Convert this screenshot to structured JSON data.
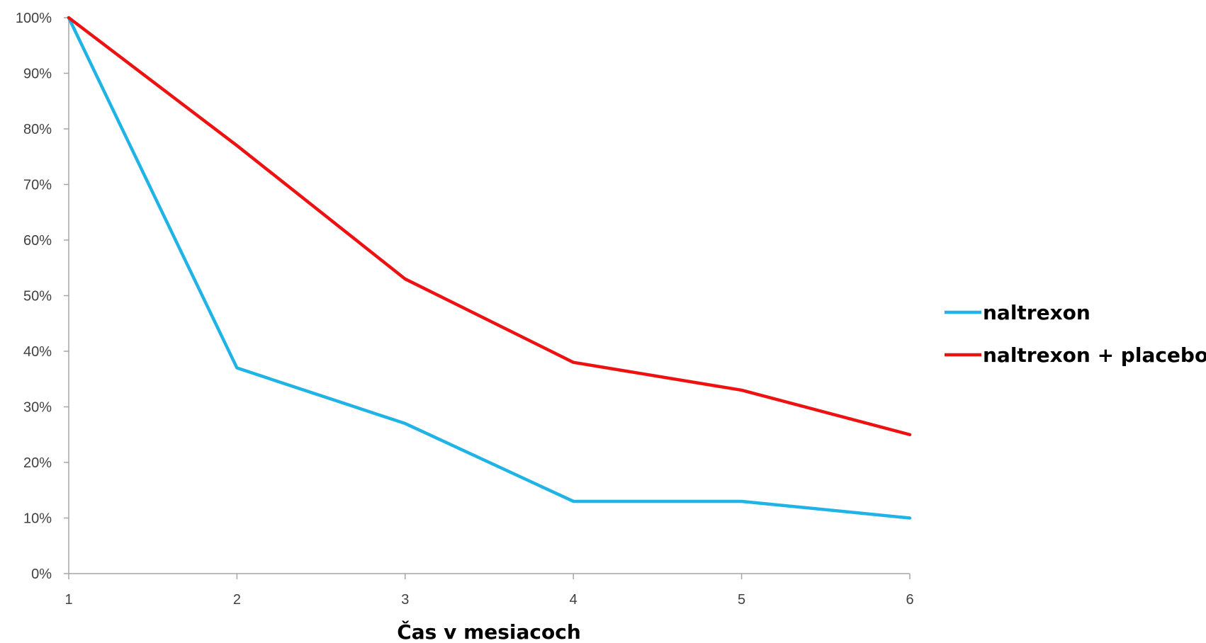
{
  "chart_data": {
    "type": "line",
    "title": "",
    "xlabel": "Čas v mesiacoch",
    "ylabel": "",
    "categories": [
      "1",
      "2",
      "3",
      "4",
      "5",
      "6"
    ],
    "x": [
      1,
      2,
      3,
      4,
      5,
      6
    ],
    "ylim": [
      0,
      100
    ],
    "y_ticks": [
      "0%",
      "10%",
      "20%",
      "30%",
      "40%",
      "50%",
      "60%",
      "70%",
      "80%",
      "90%",
      "100%"
    ],
    "y_tick_values": [
      0,
      10,
      20,
      30,
      40,
      50,
      60,
      70,
      80,
      90,
      100
    ],
    "grid": false,
    "legend_position": "right",
    "series": [
      {
        "name": "naltrexon",
        "color": "#1FB3E6",
        "values": [
          100,
          37,
          27,
          13,
          13,
          10
        ]
      },
      {
        "name": "naltrexon + placebo",
        "color": "#EE1111",
        "values": [
          100,
          77,
          53,
          38,
          33,
          25
        ]
      }
    ],
    "axis_color": "#A6A6A6"
  }
}
